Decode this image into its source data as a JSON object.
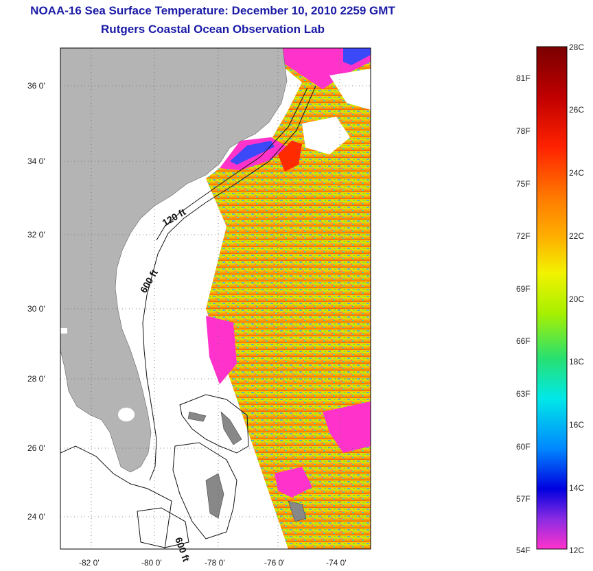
{
  "header": {
    "title": "NOAA-16 Sea Surface Temperature:  December 10, 2010 2259 GMT",
    "subtitle": "Rutgers Coastal Ocean Observation Lab"
  },
  "map": {
    "lat_ticks": [
      "24 0'",
      "26 0'",
      "28 0'",
      "30 0'",
      "32 0'",
      "34 0'",
      "36 0'"
    ],
    "lon_ticks": [
      "-82 0'",
      "-80 0'",
      "-78 0'",
      "-76 0'",
      "-74 0'"
    ],
    "isobaths": [
      "120 ft",
      "600 ft",
      "600 ft"
    ],
    "land_color": "#b4b4b4",
    "cloud_color": "#ffffff"
  },
  "colorbar": {
    "celsius_labels": [
      "28C",
      "26C",
      "24C",
      "22C",
      "20C",
      "18C",
      "16C",
      "14C",
      "12C"
    ],
    "fahrenheit_labels": [
      "81F",
      "78F",
      "75F",
      "72F",
      "69F",
      "66F",
      "63F",
      "60F",
      "57F",
      "54F"
    ],
    "colors": [
      "#7a0000",
      "#d40000",
      "#ff4a00",
      "#ff9a00",
      "#f2f200",
      "#a8f000",
      "#28e070",
      "#00e8e8",
      "#0088ff",
      "#0000e0",
      "#8a2be2",
      "#ff33cc"
    ]
  }
}
